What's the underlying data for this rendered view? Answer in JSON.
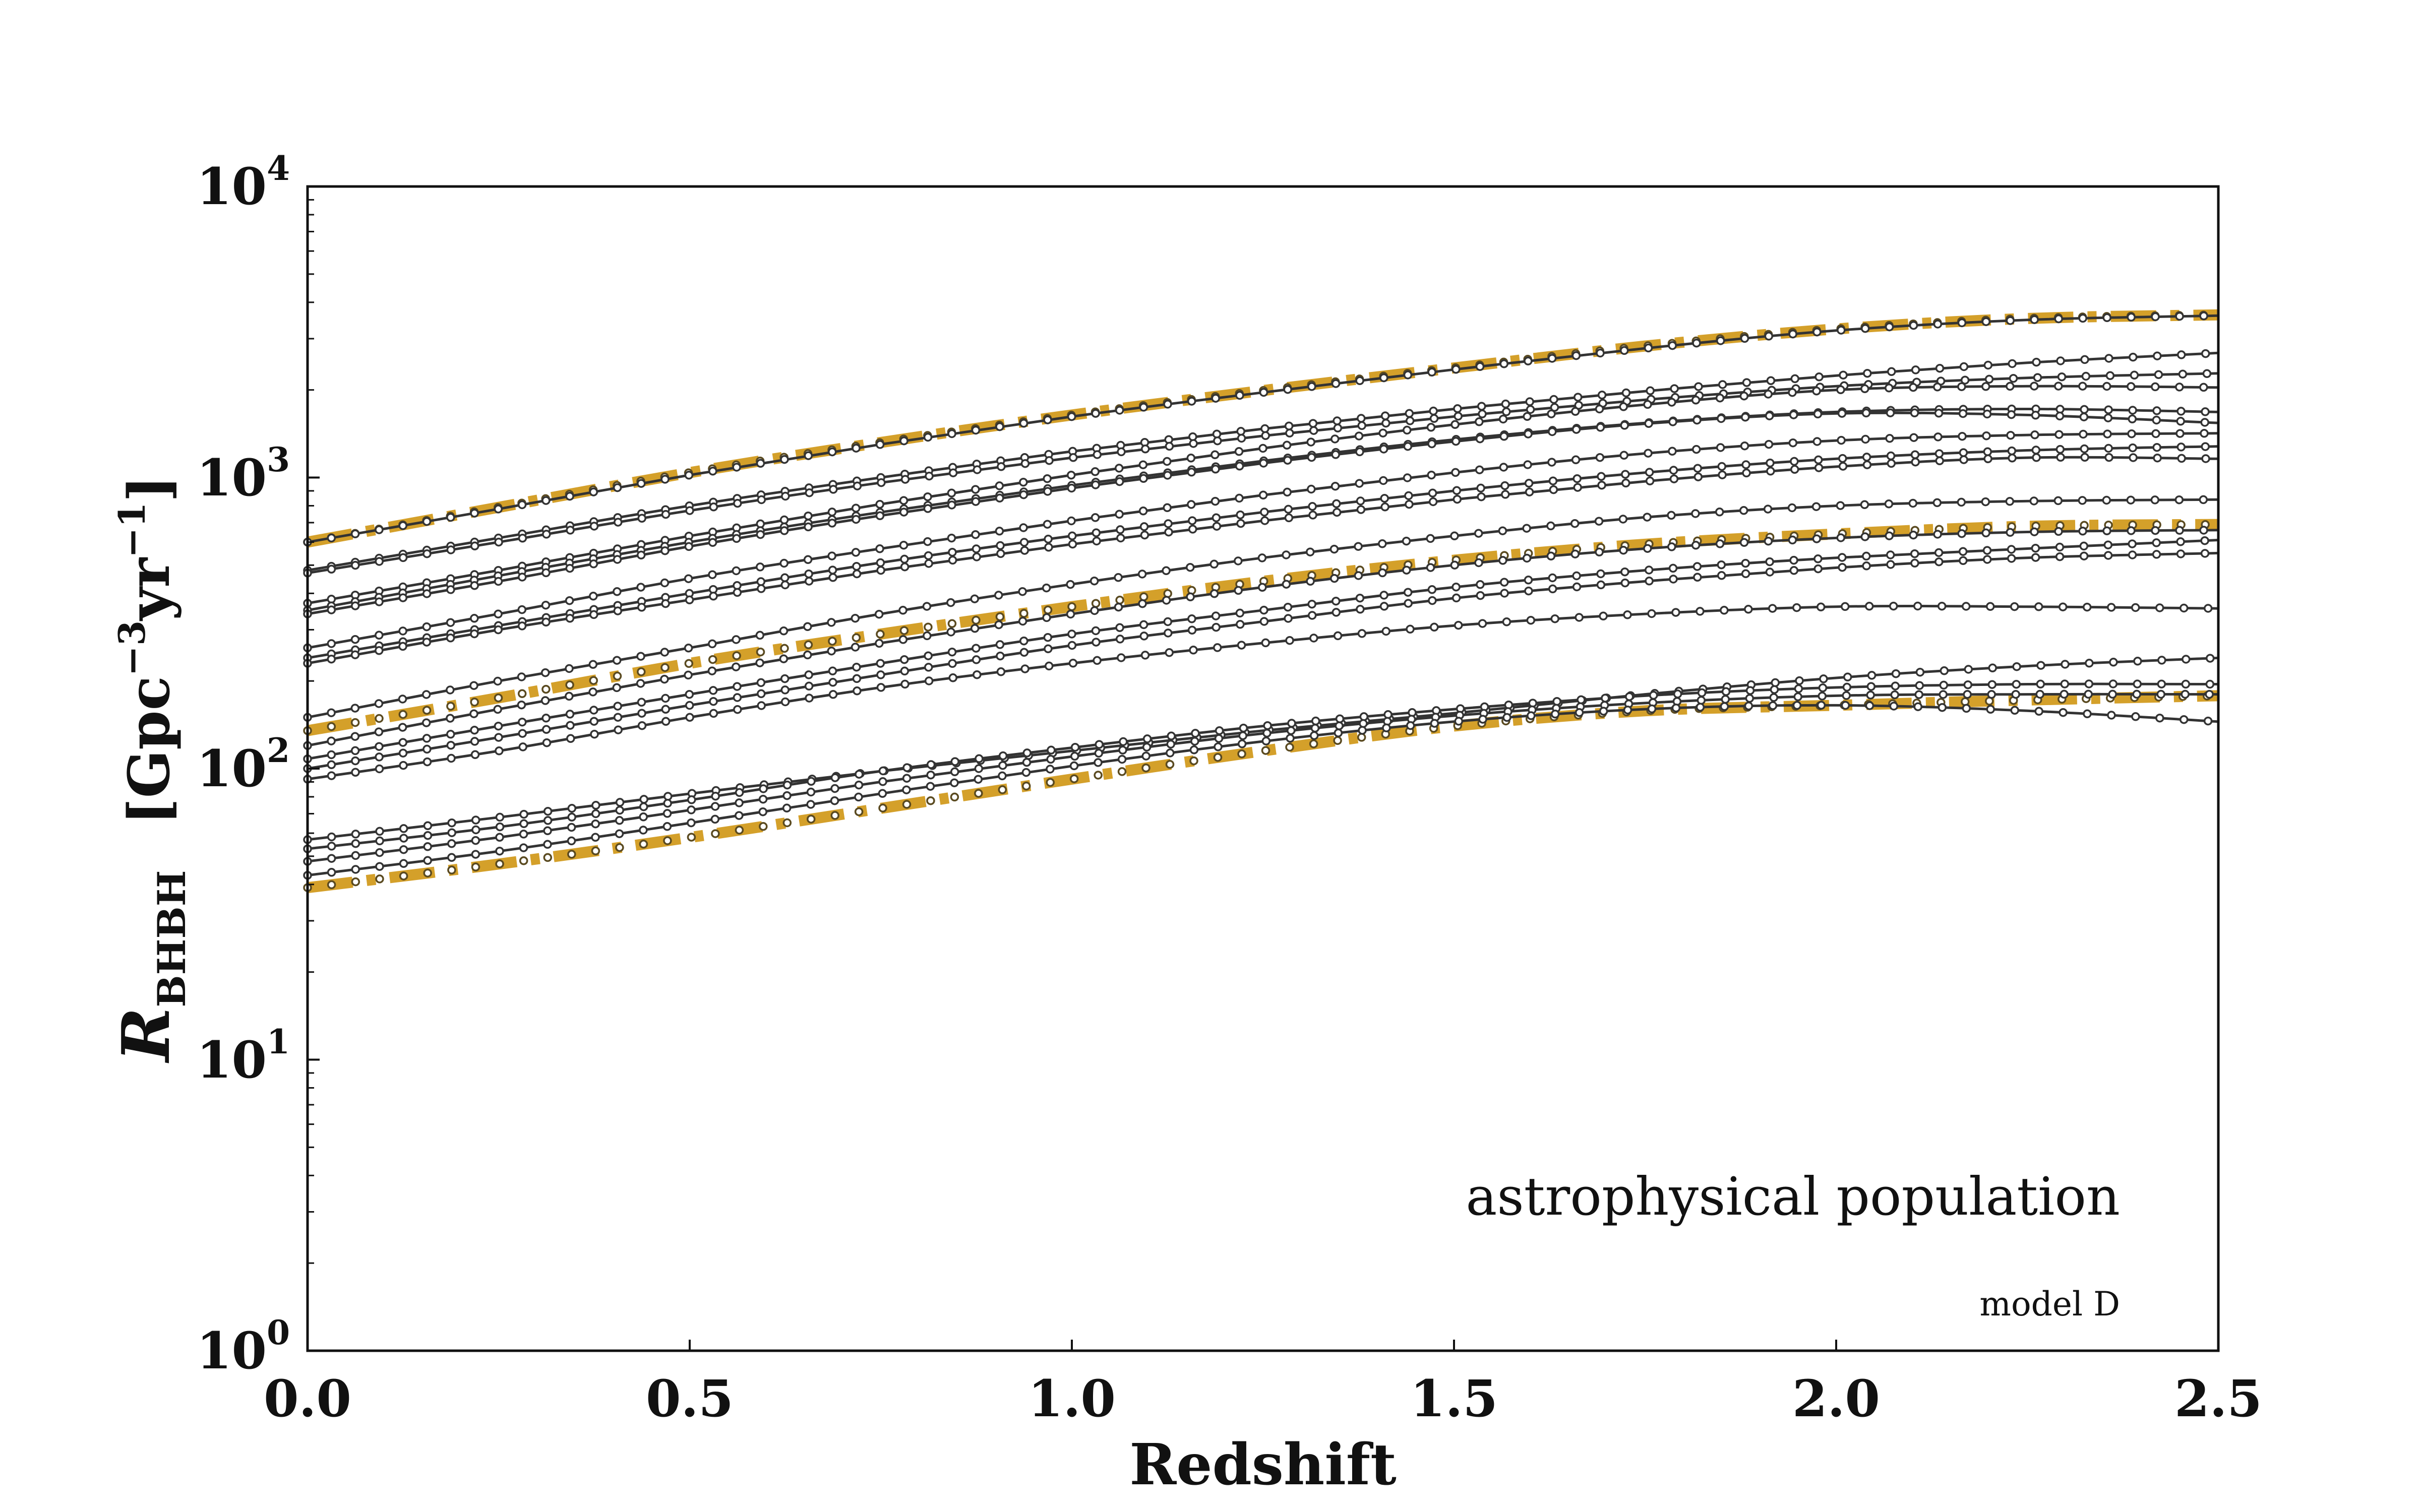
{
  "chart_data": {
    "type": "line",
    "title": "",
    "xlabel": "Redshift",
    "ylabel": {
      "symbol": "R",
      "subscript": "BHBH",
      "units_open": "[Gpc",
      "units_exp1": "−3",
      "units_mid": "yr",
      "units_exp2": "−1",
      "units_close": "]"
    },
    "xlim": [
      0.0,
      2.5
    ],
    "ylim": [
      1,
      10000
    ],
    "yscale": "log",
    "grid": false,
    "legend": "none",
    "x_ticks": [
      "0.0",
      "0.5",
      "1.0",
      "1.5",
      "2.0",
      "2.5"
    ],
    "y_ticks": [
      {
        "base": "10",
        "exp": "0"
      },
      {
        "base": "10",
        "exp": "1"
      },
      {
        "base": "10",
        "exp": "2"
      },
      {
        "base": "10",
        "exp": "3"
      },
      {
        "base": "10",
        "exp": "4"
      }
    ],
    "annotations": {
      "population": "astrophysical population",
      "model": "model D"
    },
    "colors": {
      "highlight": "#d4a02a",
      "model_line": "#333333",
      "marker_fill": "#ffffff"
    },
    "x": [
      0.0,
      0.25,
      0.5,
      0.75,
      1.0,
      1.25,
      1.5,
      1.75,
      2.0,
      2.25,
      2.5
    ],
    "series": [
      {
        "style": "highlight",
        "values": [
          600,
          790,
          1040,
          1320,
          1640,
          1990,
          2380,
          2830,
          3240,
          3520,
          3620
        ]
      },
      {
        "style": "model",
        "values": [
          600,
          780,
          1020,
          1300,
          1620,
          1960,
          2350,
          2780,
          3200,
          3480,
          3600
        ]
      },
      {
        "style": "model",
        "values": [
          480,
          620,
          800,
          1000,
          1230,
          1470,
          1720,
          1980,
          2240,
          2480,
          2680
        ]
      },
      {
        "style": "model",
        "values": [
          470,
          600,
          770,
          960,
          1170,
          1390,
          1620,
          1850,
          2060,
          2200,
          2280
        ]
      },
      {
        "style": "model",
        "values": [
          370,
          480,
          630,
          810,
          1020,
          1260,
          1520,
          1780,
          2000,
          2060,
          2040
        ]
      },
      {
        "style": "model",
        "values": [
          350,
          460,
          600,
          760,
          940,
          1140,
          1350,
          1540,
          1680,
          1720,
          1680
        ]
      },
      {
        "style": "model",
        "values": [
          340,
          440,
          580,
          740,
          920,
          1120,
          1330,
          1530,
          1660,
          1640,
          1540
        ]
      },
      {
        "style": "model",
        "values": [
          260,
          340,
          450,
          570,
          710,
          870,
          1040,
          1210,
          1340,
          1400,
          1420
        ]
      },
      {
        "style": "model",
        "values": [
          240,
          310,
          400,
          510,
          630,
          760,
          900,
          1040,
          1160,
          1240,
          1280
        ]
      },
      {
        "style": "model",
        "values": [
          230,
          300,
          380,
          480,
          590,
          710,
          840,
          970,
          1090,
          1170,
          1160
        ]
      },
      {
        "style": "model",
        "values": [
          150,
          200,
          260,
          340,
          430,
          530,
          630,
          730,
          800,
          830,
          840
        ]
      },
      {
        "style": "highlight",
        "values": [
          135,
          175,
          230,
          290,
          360,
          440,
          520,
          590,
          640,
          680,
          690
        ]
      },
      {
        "style": "model",
        "values": [
          120,
          160,
          210,
          270,
          340,
          420,
          500,
          570,
          620,
          650,
          660
        ]
      },
      {
        "style": "model",
        "values": [
          108,
          140,
          180,
          230,
          290,
          350,
          420,
          480,
          530,
          570,
          610
        ]
      },
      {
        "style": "model",
        "values": [
          100,
          128,
          165,
          210,
          265,
          320,
          385,
          440,
          490,
          530,
          550
        ]
      },
      {
        "style": "model",
        "values": [
          92,
          115,
          150,
          190,
          230,
          270,
          310,
          340,
          360,
          360,
          355
        ]
      },
      {
        "style": "model",
        "values": [
          57,
          68,
          82,
          98,
          115,
          135,
          155,
          180,
          205,
          225,
          240
        ]
      },
      {
        "style": "model",
        "values": [
          53,
          63,
          78,
          98,
          118,
          140,
          160,
          178,
          190,
          195,
          195
        ]
      },
      {
        "style": "model",
        "values": [
          48,
          58,
          72,
          90,
          110,
          132,
          152,
          168,
          178,
          180,
          180
        ]
      },
      {
        "style": "model",
        "values": [
          43,
          52,
          65,
          82,
          102,
          124,
          145,
          160,
          165,
          158,
          145
        ]
      },
      {
        "style": "highlight",
        "values": [
          39,
          47,
          58,
          73,
          92,
          115,
          140,
          158,
          165,
          172,
          178
        ]
      }
    ]
  }
}
